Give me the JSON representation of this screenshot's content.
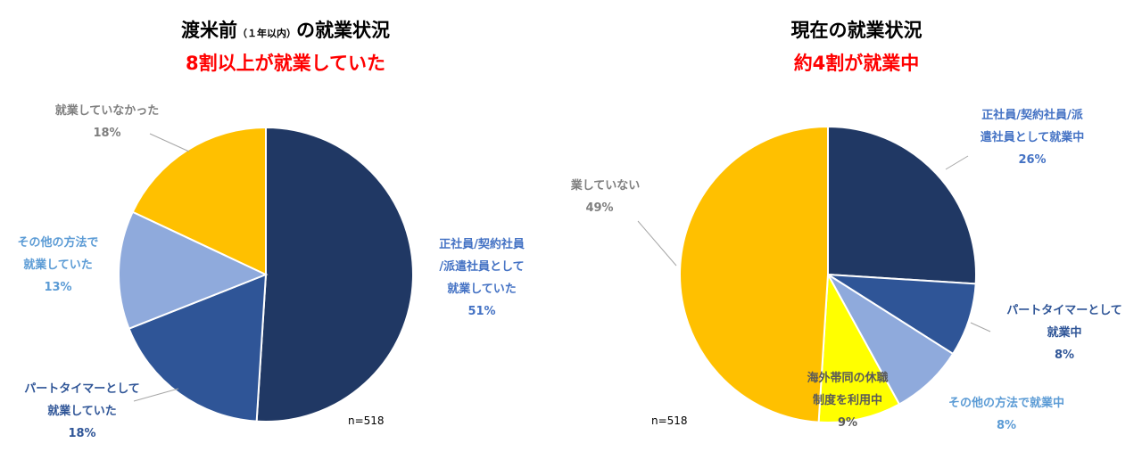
{
  "chart_data": [
    {
      "type": "pie",
      "title": {
        "prefix": "渡米前",
        "small": "（１年以内）",
        "suffix": "の就業状況"
      },
      "subtitle": "8割以上が就業していた",
      "n_label": "n=518",
      "slices": [
        {
          "label": [
            "正社員/契約社員",
            "/派遣社員として",
            "就業していた"
          ],
          "value": 51,
          "pct": "51%",
          "color": "#203864",
          "label_color": "#4472c4"
        },
        {
          "label": [
            "パートタイマーとして",
            "就業していた"
          ],
          "value": 18,
          "pct": "18%",
          "color": "#2f5597",
          "label_color": "#2f5597"
        },
        {
          "label": [
            "その他の方法で",
            "就業していた"
          ],
          "value": 13,
          "pct": "13%",
          "color": "#8faadc",
          "label_color": "#5b9bd5"
        },
        {
          "label": [
            "就業していなかった"
          ],
          "value": 18,
          "pct": "18%",
          "color": "#ffc000",
          "label_color": "#7f7f7f"
        }
      ]
    },
    {
      "type": "pie",
      "title": {
        "prefix": "現在の就業状況",
        "small": "",
        "suffix": ""
      },
      "subtitle": "約4割が就業中",
      "n_label": "n=518",
      "slices": [
        {
          "label": [
            "正社員/契約社員/派",
            "遣社員として就業中"
          ],
          "value": 26,
          "pct": "26%",
          "color": "#203864",
          "label_color": "#4472c4"
        },
        {
          "label": [
            "パートタイマーとして",
            "就業中"
          ],
          "value": 8,
          "pct": "8%",
          "color": "#2f5597",
          "label_color": "#2f5597"
        },
        {
          "label": [
            "その他の方法で就業中"
          ],
          "value": 8,
          "pct": "8%",
          "color": "#8faadc",
          "label_color": "#5b9bd5"
        },
        {
          "label": [
            "海外帯同の休職",
            "制度を利用中"
          ],
          "value": 9,
          "pct": "9%",
          "color": "#ffff00",
          "label_color": "#595959"
        },
        {
          "label": [
            "就業していない"
          ],
          "value": 49,
          "pct": "49%",
          "color": "#ffc000",
          "label_color": "#7f7f7f"
        }
      ]
    }
  ],
  "colors": {
    "subtitle": "#ff0000",
    "title": "#000000",
    "leader_line": "#a6a6a6"
  }
}
